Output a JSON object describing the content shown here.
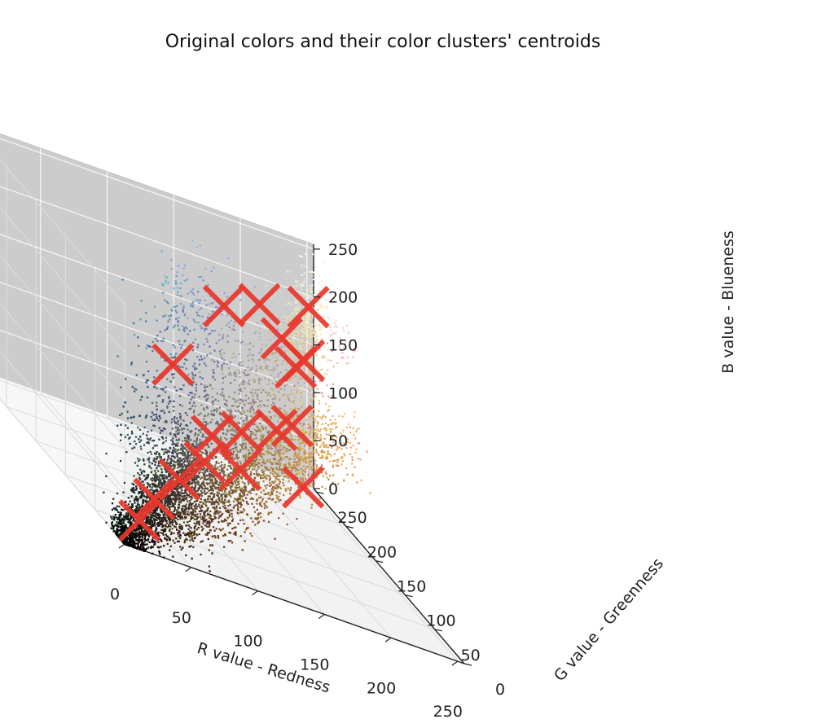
{
  "chart_data": {
    "type": "scatter3d",
    "title": "Original colors and their color clusters' centroids",
    "xlabel": "R value - Redness",
    "ylabel": "G value - Greenness",
    "zlabel": "B value - Blueness",
    "xlim": [
      0,
      255
    ],
    "ylim": [
      0,
      255
    ],
    "zlim": [
      0,
      255
    ],
    "x_ticks": [
      "0",
      "50",
      "100",
      "150",
      "200",
      "250"
    ],
    "y_ticks": [
      "0",
      "50",
      "100",
      "150",
      "200",
      "250"
    ],
    "z_ticks": [
      "0",
      "50",
      "100",
      "150",
      "200",
      "250"
    ],
    "grid": true,
    "point_series": {
      "name": "",
      "color": "pixel color (r,g,b)",
      "count": 7000
    },
    "centroid_series": {
      "name": "",
      "marker": "x",
      "color": "#e8382d",
      "points": [
        [
          20,
          20,
          20
        ],
        [
          40,
          40,
          38
        ],
        [
          70,
          65,
          55
        ],
        [
          100,
          90,
          70
        ],
        [
          110,
          100,
          95
        ],
        [
          85,
          110,
          150
        ],
        [
          140,
          120,
          60
        ],
        [
          150,
          140,
          90
        ],
        [
          185,
          160,
          95
        ],
        [
          205,
          160,
          45
        ],
        [
          210,
          190,
          90
        ],
        [
          190,
          200,
          200
        ],
        [
          215,
          195,
          150
        ],
        [
          230,
          215,
          150
        ],
        [
          240,
          230,
          200
        ],
        [
          150,
          170,
          200
        ],
        [
          200,
          185,
          180
        ]
      ]
    }
  }
}
